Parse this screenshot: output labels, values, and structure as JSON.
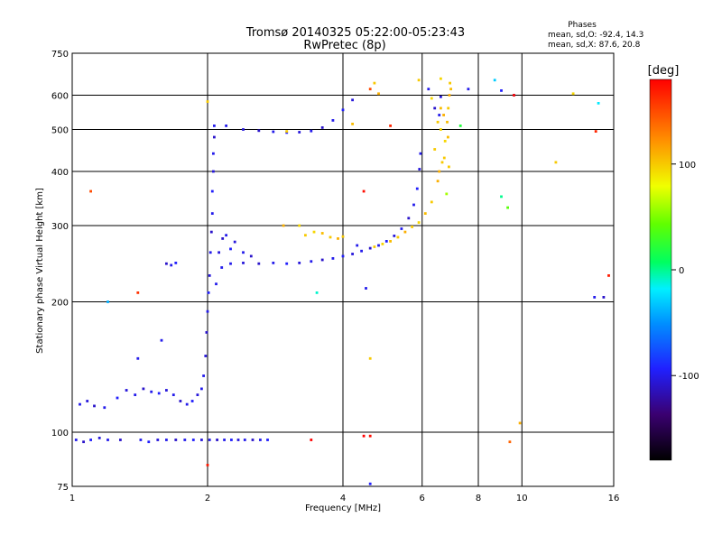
{
  "chart_data": {
    "type": "scatter",
    "title": "Tromsø 20140325 05:22:00-05:23:43",
    "subtitle": "RwPretec (8p)",
    "xlabel": "Frequency [MHz]",
    "ylabel": "Stationary phase Virtual Height [km]",
    "x_scale": "log2",
    "y_scale": "log",
    "xlim": [
      1,
      16
    ],
    "ylim": [
      75,
      750
    ],
    "x_ticks": [
      1,
      2,
      4,
      6,
      8,
      10,
      16
    ],
    "x_tick_labels": [
      "1",
      "2",
      "4",
      "6",
      "8",
      "10",
      "16"
    ],
    "y_ticks": [
      75,
      100,
      200,
      300,
      400,
      500,
      600,
      750
    ],
    "y_tick_labels": [
      "75",
      "100",
      "200",
      "300",
      "400",
      "500",
      "600",
      "750"
    ],
    "grid": true,
    "stats": {
      "title": "Phases",
      "line_o": "mean, sd,O: -92.4, 14.3",
      "line_x": "mean, sd,X:  87.6, 20.8"
    },
    "colorbar": {
      "label": "[deg]",
      "range": [
        -180,
        180
      ],
      "ticks": [
        100,
        0,
        -100
      ],
      "tick_labels": [
        "100",
        "0",
        "-100"
      ],
      "position": "right"
    },
    "series": [
      {
        "points": [
          [
            1.02,
            96,
            -100
          ],
          [
            1.06,
            95,
            -110
          ],
          [
            1.1,
            96,
            -95
          ],
          [
            1.15,
            97,
            -105
          ],
          [
            1.2,
            96,
            -100
          ],
          [
            1.28,
            96,
            -110
          ],
          [
            1.42,
            96,
            -100
          ],
          [
            1.48,
            95,
            -95
          ],
          [
            1.55,
            96,
            -105
          ],
          [
            1.62,
            96,
            -100
          ],
          [
            1.7,
            96,
            -110
          ],
          [
            1.78,
            96,
            -100
          ],
          [
            1.86,
            96,
            -95
          ],
          [
            1.94,
            96,
            -105
          ],
          [
            2.02,
            96,
            -100
          ],
          [
            2.1,
            96,
            -110
          ],
          [
            2.18,
            96,
            -100
          ],
          [
            2.26,
            96,
            -95
          ],
          [
            2.34,
            96,
            -105
          ],
          [
            2.42,
            96,
            -100
          ],
          [
            2.52,
            96,
            -110
          ],
          [
            2.62,
            96,
            -100
          ],
          [
            2.72,
            96,
            -95
          ],
          [
            1.04,
            116,
            -100
          ],
          [
            1.08,
            118,
            -105
          ],
          [
            1.12,
            115,
            -110
          ],
          [
            1.18,
            114,
            -100
          ],
          [
            1.26,
            120,
            -95
          ],
          [
            1.32,
            125,
            -105
          ],
          [
            1.38,
            122,
            -100
          ],
          [
            1.44,
            126,
            -110
          ],
          [
            1.5,
            124,
            -100
          ],
          [
            1.56,
            123,
            -95
          ],
          [
            1.62,
            125,
            -105
          ],
          [
            1.68,
            122,
            -100
          ],
          [
            1.74,
            118,
            -110
          ],
          [
            1.8,
            116,
            -100
          ],
          [
            1.85,
            118,
            -95
          ],
          [
            1.9,
            122,
            -105
          ],
          [
            1.94,
            126,
            -100
          ],
          [
            1.4,
            148,
            -100
          ],
          [
            1.58,
            163,
            -100
          ],
          [
            1.62,
            245,
            -110
          ],
          [
            1.66,
            243,
            -100
          ],
          [
            1.7,
            246,
            -95
          ],
          [
            1.96,
            135,
            -100
          ],
          [
            1.98,
            150,
            -105
          ],
          [
            1.99,
            170,
            -110
          ],
          [
            2.0,
            190,
            -100
          ],
          [
            2.01,
            210,
            -95
          ],
          [
            2.02,
            230,
            -105
          ],
          [
            2.03,
            260,
            -100
          ],
          [
            2.04,
            290,
            -110
          ],
          [
            2.05,
            320,
            -100
          ],
          [
            2.05,
            360,
            -95
          ],
          [
            2.06,
            400,
            -105
          ],
          [
            2.06,
            440,
            -100
          ],
          [
            2.07,
            480,
            -110
          ],
          [
            2.07,
            510,
            -100
          ],
          [
            2.09,
            220,
            -100
          ],
          [
            2.12,
            260,
            -105
          ],
          [
            2.16,
            280,
            -110
          ],
          [
            2.2,
            285,
            -100
          ],
          [
            2.25,
            265,
            -95
          ],
          [
            2.3,
            275,
            -105
          ],
          [
            2.4,
            260,
            -100
          ],
          [
            2.5,
            255,
            -110
          ],
          [
            2.15,
            240,
            -100
          ],
          [
            2.25,
            245,
            -100
          ],
          [
            2.4,
            246,
            -105
          ],
          [
            2.6,
            245,
            -110
          ],
          [
            2.8,
            246,
            -100
          ],
          [
            3.0,
            245,
            -95
          ],
          [
            3.2,
            246,
            -105
          ],
          [
            3.4,
            248,
            -100
          ],
          [
            3.6,
            250,
            -110
          ],
          [
            3.8,
            252,
            -100
          ],
          [
            4.0,
            255,
            -95
          ],
          [
            4.2,
            258,
            -105
          ],
          [
            4.4,
            262,
            -100
          ],
          [
            4.6,
            266,
            -110
          ],
          [
            4.8,
            270,
            -100
          ],
          [
            5.0,
            276,
            -95
          ],
          [
            5.2,
            284,
            -105
          ],
          [
            5.4,
            295,
            -100
          ],
          [
            5.6,
            312,
            -110
          ],
          [
            5.75,
            335,
            -100
          ],
          [
            5.85,
            365,
            -95
          ],
          [
            5.92,
            405,
            -105
          ],
          [
            5.95,
            440,
            -100
          ],
          [
            2.2,
            510,
            -100
          ],
          [
            2.4,
            500,
            -105
          ],
          [
            2.6,
            497,
            -110
          ],
          [
            2.8,
            494,
            -100
          ],
          [
            3.0,
            492,
            -95
          ],
          [
            3.2,
            493,
            -105
          ],
          [
            3.4,
            496,
            -100
          ],
          [
            3.6,
            505,
            -110
          ],
          [
            3.8,
            525,
            -100
          ],
          [
            4.0,
            555,
            -95
          ],
          [
            4.2,
            585,
            -105
          ],
          [
            6.2,
            620,
            -100
          ],
          [
            6.6,
            595,
            -105
          ],
          [
            6.4,
            560,
            -110
          ],
          [
            6.55,
            540,
            -100
          ],
          [
            7.6,
            620,
            -100
          ],
          [
            9.0,
            615,
            -95
          ],
          [
            9.6,
            600,
            -105
          ],
          [
            14.5,
            205,
            -100
          ],
          [
            15.2,
            205,
            -110
          ],
          [
            4.5,
            215,
            -100
          ],
          [
            4.6,
            76,
            -95
          ],
          [
            4.3,
            270,
            -100
          ]
        ]
      },
      {
        "points": [
          [
            3.3,
            285,
            100
          ],
          [
            3.45,
            290,
            95
          ],
          [
            3.6,
            288,
            105
          ],
          [
            3.75,
            282,
            100
          ],
          [
            3.9,
            280,
            110
          ],
          [
            4.0,
            283,
            100
          ],
          [
            4.7,
            268,
            100
          ],
          [
            4.9,
            272,
            95
          ],
          [
            5.1,
            276,
            105
          ],
          [
            5.3,
            282,
            100
          ],
          [
            5.5,
            290,
            110
          ],
          [
            5.7,
            298,
            100
          ],
          [
            5.9,
            305,
            95
          ],
          [
            6.1,
            320,
            105
          ],
          [
            6.3,
            340,
            100
          ],
          [
            6.5,
            380,
            110
          ],
          [
            6.65,
            420,
            100
          ],
          [
            6.75,
            470,
            95
          ],
          [
            6.82,
            520,
            105
          ],
          [
            6.86,
            560,
            100
          ],
          [
            6.9,
            600,
            110
          ],
          [
            6.92,
            640,
            100
          ],
          [
            6.3,
            590,
            95
          ],
          [
            6.6,
            560,
            105
          ],
          [
            6.5,
            520,
            100
          ],
          [
            6.7,
            540,
            110
          ],
          [
            6.4,
            450,
            100
          ],
          [
            6.6,
            500,
            95
          ],
          [
            6.85,
            480,
            105
          ],
          [
            6.72,
            430,
            100
          ],
          [
            6.55,
            400,
            110
          ],
          [
            6.88,
            410,
            100
          ],
          [
            2.0,
            580,
            100
          ],
          [
            3.2,
            300,
            95
          ],
          [
            4.2,
            515,
            105
          ],
          [
            4.7,
            640,
            100
          ],
          [
            4.8,
            605,
            110
          ],
          [
            5.9,
            650,
            100
          ],
          [
            6.6,
            655,
            95
          ],
          [
            6.95,
            620,
            105
          ],
          [
            3.0,
            495,
            100
          ],
          [
            2.95,
            300,
            110
          ],
          [
            4.6,
            148,
            100
          ],
          [
            9.9,
            105,
            110
          ],
          [
            11.9,
            420,
            100
          ],
          [
            13.0,
            605,
            95
          ]
        ]
      },
      {
        "points": [
          [
            1.1,
            360,
            150
          ],
          [
            1.4,
            210,
            160
          ],
          [
            2.0,
            84,
            170
          ],
          [
            4.45,
            98,
            180
          ],
          [
            4.6,
            98,
            175
          ],
          [
            4.45,
            360,
            175
          ],
          [
            5.1,
            510,
            165
          ],
          [
            4.6,
            620,
            150
          ],
          [
            9.6,
            600,
            175
          ],
          [
            14.6,
            495,
            165
          ],
          [
            15.6,
            230,
            170
          ],
          [
            3.4,
            96,
            180
          ],
          [
            9.4,
            95,
            140
          ]
        ]
      },
      {
        "points": [
          [
            1.2,
            200,
            -40
          ],
          [
            3.5,
            210,
            -10
          ],
          [
            7.3,
            510,
            20
          ],
          [
            9.0,
            350,
            0
          ],
          [
            14.8,
            575,
            -20
          ],
          [
            9.3,
            330,
            40
          ],
          [
            8.7,
            650,
            -30
          ],
          [
            6.8,
            355,
            60
          ]
        ]
      }
    ]
  }
}
